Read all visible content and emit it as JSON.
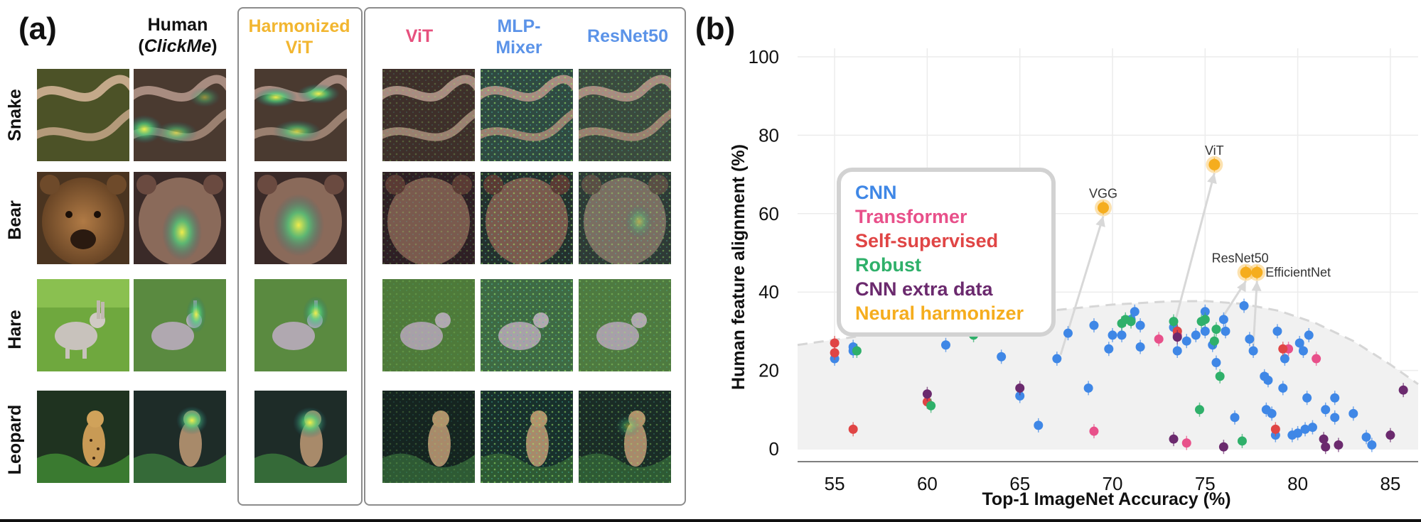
{
  "panel_a": {
    "label": "(a)",
    "headers": {
      "human_line1": "Human",
      "human_open": "(",
      "human_italic": "ClickMe",
      "human_close": ")",
      "harmonized": "Harmonized ViT",
      "vit": "ViT",
      "mlp": "MLP-Mixer",
      "resnet": "ResNet50"
    },
    "rows": [
      "Snake",
      "Bear",
      "Hare",
      "Leopard"
    ],
    "colors": {
      "harmonized": "#f2b630",
      "vit": "#e6507d",
      "mlp": "#5b93e8",
      "resnet": "#5b93e8",
      "human": "#111111"
    }
  },
  "panel_b": {
    "label": "(b)",
    "legend": [
      {
        "label": "CNN",
        "color": "#3f87e6"
      },
      {
        "label": "Transformer",
        "color": "#e8508a"
      },
      {
        "label": "Self-supervised",
        "color": "#e04545"
      },
      {
        "label": "Robust",
        "color": "#2fb06a"
      },
      {
        "label": "CNN extra data",
        "color": "#6b2a6e"
      },
      {
        "label": "Neural harmonizer",
        "color": "#f5ad1e"
      }
    ]
  },
  "chart_data": {
    "type": "scatter",
    "title": "",
    "xlabel": "Top-1 ImageNet Accuracy (%)",
    "ylabel": "Human feature alignment (%)",
    "xlim": [
      53,
      86.5
    ],
    "ylim": [
      0,
      100
    ],
    "xticks": [
      55,
      60,
      65,
      70,
      75,
      80,
      85
    ],
    "yticks": [
      0,
      20,
      40,
      60,
      80,
      100
    ],
    "grid": true,
    "frontier": [
      [
        53,
        26.5
      ],
      [
        56,
        28.5
      ],
      [
        60,
        31.5
      ],
      [
        65,
        34.5
      ],
      [
        70,
        36.8
      ],
      [
        73,
        37.6
      ],
      [
        75,
        37.7
      ],
      [
        77,
        37.0
      ],
      [
        79,
        35.2
      ],
      [
        81,
        32.0
      ],
      [
        83,
        27.5
      ],
      [
        85,
        21.5
      ],
      [
        86.5,
        16.5
      ]
    ],
    "series": [
      {
        "name": "CNN",
        "color": "#3f87e6",
        "points": [
          [
            55,
            23
          ],
          [
            56,
            26
          ],
          [
            56,
            25
          ],
          [
            61,
            26.5
          ],
          [
            64,
            23.5
          ],
          [
            65,
            13.5
          ],
          [
            66,
            6
          ],
          [
            67,
            23
          ],
          [
            67.6,
            29.5
          ],
          [
            68.7,
            15.5
          ],
          [
            69,
            31.5
          ],
          [
            69.8,
            25.5
          ],
          [
            70,
            29
          ],
          [
            70.5,
            29
          ],
          [
            71,
            33
          ],
          [
            71.2,
            35
          ],
          [
            71.5,
            31.5
          ],
          [
            71.5,
            26
          ],
          [
            73.3,
            31
          ],
          [
            73.5,
            30
          ],
          [
            73.5,
            25
          ],
          [
            74,
            27.5
          ],
          [
            74.5,
            29
          ],
          [
            75,
            35
          ],
          [
            75,
            30
          ],
          [
            75.4,
            26.5
          ],
          [
            75.6,
            22
          ],
          [
            76,
            33
          ],
          [
            76.1,
            30
          ],
          [
            76.6,
            8
          ],
          [
            77.1,
            36.5
          ],
          [
            77.4,
            28
          ],
          [
            77.6,
            25
          ],
          [
            78.2,
            18.5
          ],
          [
            78.3,
            10
          ],
          [
            78.4,
            17.5
          ],
          [
            78.6,
            9
          ],
          [
            78.8,
            3.5
          ],
          [
            78.9,
            30
          ],
          [
            79.2,
            15.5
          ],
          [
            79.3,
            23
          ],
          [
            79.7,
            3.5
          ],
          [
            80,
            4
          ],
          [
            80.1,
            27
          ],
          [
            80.3,
            25
          ],
          [
            80.4,
            5
          ],
          [
            80.5,
            13
          ],
          [
            80.6,
            29
          ],
          [
            80.8,
            5.5
          ],
          [
            81.5,
            10
          ],
          [
            82,
            13
          ],
          [
            82,
            8
          ],
          [
            83,
            9
          ],
          [
            83.7,
            3
          ],
          [
            84,
            1
          ]
        ]
      },
      {
        "name": "Transformer",
        "color": "#e8508a",
        "points": [
          [
            69,
            4.5
          ],
          [
            72.5,
            28
          ],
          [
            73.5,
            29
          ],
          [
            74,
            1.5
          ],
          [
            79.5,
            25.5
          ],
          [
            81,
            23
          ]
        ]
      },
      {
        "name": "Self-supervised",
        "color": "#e04545",
        "points": [
          [
            55,
            27
          ],
          [
            55,
            24.5
          ],
          [
            56,
            5
          ],
          [
            60,
            12
          ],
          [
            73.5,
            30
          ],
          [
            78.8,
            5
          ],
          [
            79.2,
            25.5
          ]
        ]
      },
      {
        "name": "Robust",
        "color": "#2fb06a",
        "points": [
          [
            56.2,
            25
          ],
          [
            60.2,
            11
          ],
          [
            62.5,
            29
          ],
          [
            70.5,
            32
          ],
          [
            70.7,
            33
          ],
          [
            71,
            32.5
          ],
          [
            73.3,
            32.5
          ],
          [
            74.7,
            10
          ],
          [
            74.8,
            32.5
          ],
          [
            75,
            33
          ],
          [
            75.5,
            27.5
          ],
          [
            75.6,
            30.5
          ],
          [
            75.8,
            18.5
          ],
          [
            77,
            2
          ]
        ]
      },
      {
        "name": "CNN extra data",
        "color": "#6b2a6e",
        "points": [
          [
            60,
            14
          ],
          [
            65,
            15.5
          ],
          [
            73.3,
            2.5
          ],
          [
            73.5,
            28.5
          ],
          [
            76,
            0.5
          ],
          [
            81.4,
            2.5
          ],
          [
            81.5,
            0.5
          ],
          [
            82.2,
            1
          ],
          [
            85,
            3.5
          ],
          [
            85.7,
            15
          ]
        ]
      },
      {
        "name": "Neural harmonizer",
        "color": "#f5ad1e",
        "points": [
          [
            69.5,
            61.5
          ],
          [
            75.5,
            72.5
          ],
          [
            77.2,
            45
          ],
          [
            77.8,
            45
          ]
        ],
        "labels": [
          "VGG",
          "ViT",
          "ResNet50",
          "EfficientNet"
        ],
        "arrows_from": [
          [
            67.2,
            24
          ],
          [
            73.3,
            31
          ],
          [
            76,
            34
          ],
          [
            77.6,
            26
          ]
        ]
      }
    ]
  }
}
